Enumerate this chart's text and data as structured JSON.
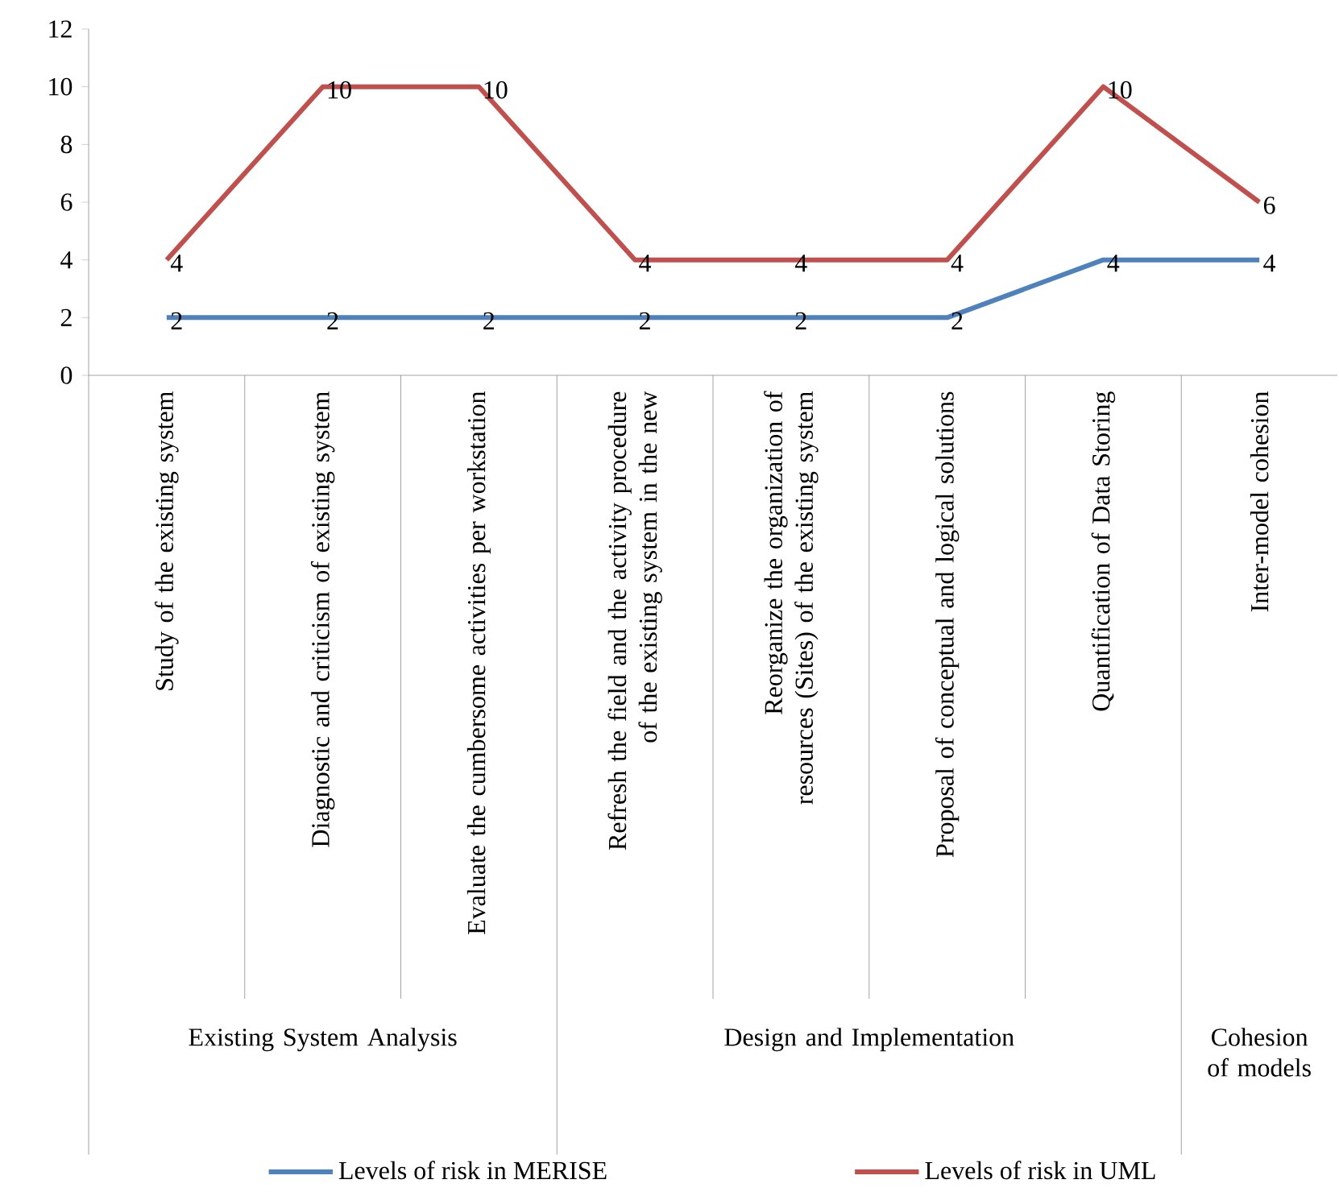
{
  "chart_data": {
    "type": "line",
    "categories": [
      "Study of the existing system",
      "Diagnostic and criticism of existing system",
      "Evaluate the cumbersome activities per workstation",
      "Refresh the field and the activity procedure of the existing system in the new",
      "Reorganize the organization of resources (Sites) of the existing system",
      "Proposal of conceptual and logical solutions",
      "Quantification of  Data Storing",
      "Inter-model cohesion"
    ],
    "series": [
      {
        "name": "Levels of risk in MERISE",
        "color": "#4f81bd",
        "values": [
          2,
          2,
          2,
          2,
          2,
          2,
          4,
          4
        ]
      },
      {
        "name": "Levels of risk in UML",
        "color": "#c0504d",
        "values": [
          4,
          10,
          10,
          4,
          4,
          4,
          10,
          6
        ]
      }
    ],
    "ylim": [
      0,
      12
    ],
    "yticks": [
      0,
      2,
      4,
      6,
      8,
      10,
      12
    ],
    "annotations": [
      "Existing System Analysis",
      "Design and Implementation",
      "Cohesion of models"
    ],
    "data_labels": true,
    "legend": "bottom",
    "marker": "none",
    "line_style": "solid"
  }
}
